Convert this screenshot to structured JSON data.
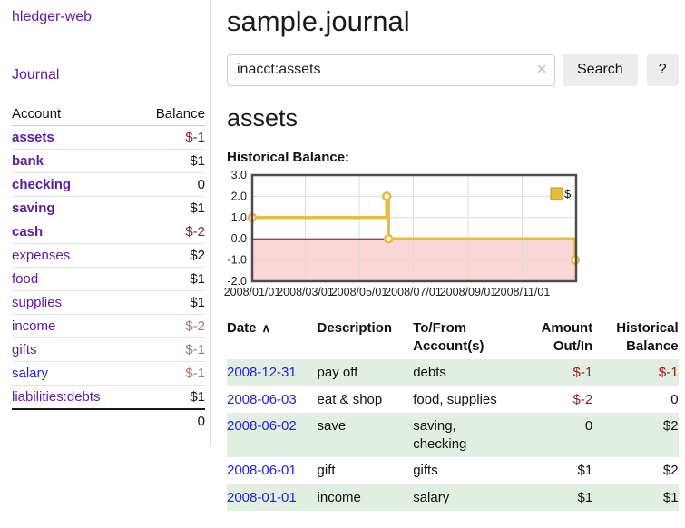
{
  "app": {
    "brand": "hledger-web",
    "nav_journal": "Journal"
  },
  "sidebar": {
    "header": {
      "account": "Account",
      "balance": "Balance"
    },
    "accounts": [
      {
        "name": "assets",
        "depth": 0,
        "bold": true,
        "balance": "$-1",
        "balance_style": "neg-strong",
        "link_style": "visited"
      },
      {
        "name": "bank",
        "depth": 1,
        "bold": true,
        "balance": "$1",
        "balance_style": "pos",
        "link_style": "visited"
      },
      {
        "name": "checking",
        "depth": 2,
        "bold": true,
        "balance": "0",
        "balance_style": "pos",
        "link_style": "visited"
      },
      {
        "name": "saving",
        "depth": 2,
        "bold": true,
        "balance": "$1",
        "balance_style": "pos",
        "link_style": "visited"
      },
      {
        "name": "cash",
        "depth": 1,
        "bold": true,
        "balance": "$-2",
        "balance_style": "neg-strong",
        "link_style": "visited"
      },
      {
        "name": "expenses",
        "depth": 0,
        "bold": false,
        "balance": "$2",
        "balance_style": "pos",
        "link_style": "visited"
      },
      {
        "name": "food",
        "depth": 1,
        "bold": false,
        "balance": "$1",
        "balance_style": "pos",
        "link_style": "visited"
      },
      {
        "name": "supplies",
        "depth": 1,
        "bold": false,
        "balance": "$1",
        "balance_style": "pos",
        "link_style": "visited"
      },
      {
        "name": "income",
        "depth": 0,
        "bold": false,
        "balance": "$-2",
        "balance_style": "neg-soft",
        "link_style": "visited"
      },
      {
        "name": "gifts",
        "depth": 1,
        "bold": false,
        "balance": "$-1",
        "balance_style": "neg-soft",
        "link_style": "visited"
      },
      {
        "name": "salary",
        "depth": 1,
        "bold": false,
        "balance": "$-1",
        "balance_style": "neg-soft",
        "link_style": "unvisited"
      },
      {
        "name": "liabilities:debts",
        "depth": 0,
        "bold": false,
        "balance": "$1",
        "balance_style": "pos",
        "link_style": "visited"
      }
    ],
    "total": "0"
  },
  "header": {
    "title": "sample.journal"
  },
  "search": {
    "value": "inacct:assets",
    "clear_icon": "✕",
    "button_label": "Search",
    "help_label": "?"
  },
  "account_page": {
    "title": "assets",
    "chart_label": "Historical Balance:"
  },
  "chart_data": {
    "type": "line",
    "step": true,
    "title": "Historical Balance:",
    "series": [
      {
        "name": "$",
        "color": "#e9bd3a",
        "points": [
          [
            "2008-01-01",
            1
          ],
          [
            "2008-06-01",
            2
          ],
          [
            "2008-06-03",
            0
          ],
          [
            "2008-12-31",
            -1
          ]
        ]
      }
    ],
    "x_ticks": [
      "2008/01/01",
      "2008/03/01",
      "2008/05/01",
      "2008/07/01",
      "2008/09/01",
      "2008/11/01"
    ],
    "y_ticks": [
      3,
      2,
      1,
      0,
      -1,
      -2
    ],
    "ylim": [
      -2,
      3
    ],
    "xlim": [
      "2008-01-01",
      "2009-01-01"
    ],
    "grid": true,
    "legend_position": "top-right",
    "colors": {
      "negative_fill": "#fad6d6",
      "zero_line": "#a00000",
      "grid": "#dcdcdc",
      "border": "#4d4d4d",
      "marker_fill": "#ffffff",
      "legend_square_border": "#b8962a"
    }
  },
  "register": {
    "columns": [
      "Date",
      "Description",
      "To/From Account(s)",
      "Amount Out/In",
      "Historical Balance"
    ],
    "sort_icon": "∧",
    "rows": [
      {
        "date": "2008-12-31",
        "description": "pay off",
        "accounts": "debts",
        "amount": "$-1",
        "amount_neg": true,
        "balance": "$-1",
        "balance_neg": true
      },
      {
        "date": "2008-06-03",
        "description": "eat & shop",
        "accounts": "food, supplies",
        "amount": "$-2",
        "amount_neg": true,
        "balance": "0",
        "balance_neg": false
      },
      {
        "date": "2008-06-02",
        "description": "save",
        "accounts": "saving, checking",
        "amount": "0",
        "amount_neg": false,
        "balance": "$2",
        "balance_neg": false
      },
      {
        "date": "2008-06-01",
        "description": "gift",
        "accounts": "gifts",
        "amount": "$1",
        "amount_neg": false,
        "balance": "$2",
        "balance_neg": false
      },
      {
        "date": "2008-01-01",
        "description": "income",
        "accounts": "salary",
        "amount": "$1",
        "amount_neg": false,
        "balance": "$1",
        "balance_neg": false
      }
    ]
  },
  "colors": {
    "link_purple": "#5a1ca3",
    "link_blue": "#2323dd",
    "negative_strong": "#8f1d1d",
    "negative_soft": "#bc6f72",
    "row_stripe_green": "#e2eee2",
    "button_gray": "#ececec"
  }
}
